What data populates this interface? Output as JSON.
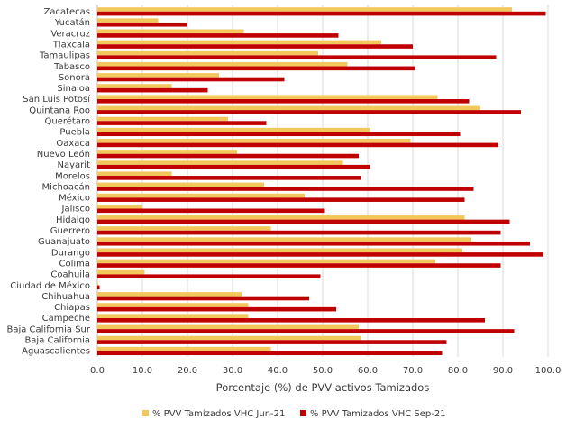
{
  "chart_data": {
    "type": "bar",
    "orientation": "horizontal",
    "categories": [
      "Zacatecas",
      "Yucatán",
      "Veracruz",
      "Tlaxcala",
      "Tamaulipas",
      "Tabasco",
      "Sonora",
      "Sinaloa",
      "San Luis Potosí",
      "Quintana Roo",
      "Querétaro",
      "Puebla",
      "Oaxaca",
      "Nuevo León",
      "Nayarit",
      "Morelos",
      "Michoacán",
      "México",
      "Jalisco",
      "Hidalgo",
      "Guerrero",
      "Guanajuato",
      "Durango",
      "Colima",
      "Coahuila",
      "Ciudad de México",
      "Chihuahua",
      "Chiapas",
      "Campeche",
      "Baja California Sur",
      "Baja California",
      "Aguascalientes"
    ],
    "series": [
      {
        "name": "% PVV Tamizados VHC Jun-21",
        "color": "#F2C75C",
        "values": [
          92,
          13.5,
          32.5,
          63,
          49,
          55.5,
          27,
          16.5,
          75.5,
          85,
          29,
          60.5,
          69.5,
          31,
          54.5,
          16.5,
          37,
          46,
          10,
          81.5,
          38.5,
          83,
          81,
          75,
          10.5,
          0,
          32,
          33.5,
          33.5,
          58,
          58.5,
          38.5
        ]
      },
      {
        "name": "% PVV Tamizados VHC Sep-21",
        "color": "#C00000",
        "values": [
          99.5,
          20,
          53.5,
          70,
          88.5,
          70.5,
          41.5,
          24.5,
          82.5,
          94,
          37.5,
          80.5,
          89,
          58,
          60.5,
          58.5,
          83.5,
          81.5,
          50.5,
          91.5,
          89.5,
          96,
          99,
          89.5,
          49.5,
          0.5,
          47,
          53,
          86,
          92.5,
          77.5,
          76.5
        ]
      }
    ],
    "xlabel": "Porcentaje (%) de PVV activos Tamizados",
    "xlim": [
      0,
      100
    ],
    "xticks": [
      "0.0",
      "10.0",
      "20.0",
      "30.0",
      "40.0",
      "50.0",
      "60.0",
      "70.0",
      "80.0",
      "90.0",
      "100.0"
    ],
    "grid": true,
    "legend_position": "bottom"
  }
}
